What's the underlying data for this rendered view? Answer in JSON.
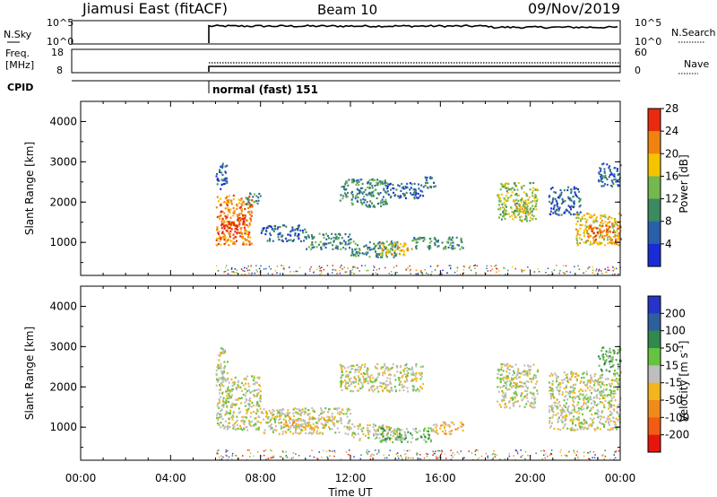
{
  "header": {
    "site": "Jiamusi East (fitACF)",
    "beam": "Beam 10",
    "date": "09/Nov/2019"
  },
  "strip_panels": {
    "nsky_label": "N.Sky",
    "nsearch_label": "N.Search",
    "log_ticks": [
      "10^5",
      "10^0"
    ],
    "freq_label": "Freq.",
    "freq_unit": "[MHz]",
    "freq_ticks": [
      "18",
      "8"
    ],
    "nave_label": "Nave",
    "nave_ticks": [
      "60",
      "0"
    ],
    "cpid_label": "CPID",
    "cpid_text": "normal (fast) 151"
  },
  "time_axis": {
    "ticks": [
      "00:00",
      "04:00",
      "08:00",
      "12:00",
      "16:00",
      "20:00",
      "00:00"
    ],
    "label": "Time UT"
  },
  "power_panel": {
    "ylabel": "Slant Range [km]",
    "yticks": [
      "1000",
      "2000",
      "3000",
      "4000"
    ],
    "colorbar_label": "Power [dB]",
    "colorbar_ticks": [
      "4",
      "8",
      "12",
      "16",
      "20",
      "24",
      "28"
    ],
    "colors": [
      "#1a2bd6",
      "#2a5faa",
      "#3d8a5f",
      "#74b84e",
      "#f5c400",
      "#f0830f",
      "#ea2a10"
    ]
  },
  "velocity_panel": {
    "ylabel": "Slant Range [km]",
    "yticks": [
      "1000",
      "2000",
      "3000",
      "4000"
    ],
    "colorbar_label": "Velocity [m s^-1]",
    "colorbar_ticks": [
      "200",
      "100",
      "50",
      "15",
      "-15",
      "-50",
      "-100",
      "-200"
    ],
    "colors": [
      "#2535c8",
      "#2d5f9e",
      "#2f8a4c",
      "#66c340",
      "#bebebe",
      "#f3b51d",
      "#f08a1b",
      "#f25b13",
      "#e8150c"
    ]
  },
  "chart_data": {
    "type": "heatmap",
    "x_range_hours": [
      0,
      24
    ],
    "y_range_km": [
      180,
      4500
    ],
    "radar_on_time_h": 6.0,
    "nsky_log_level": 4.3,
    "nsky_after_18_3": 4.0,
    "freq_level_mhz": 10.5,
    "nave_level": 25,
    "power_regions": [
      {
        "t0": 6.0,
        "t1": 7.6,
        "r0": 950,
        "r1": 2200,
        "level": 5
      },
      {
        "t0": 6.2,
        "t1": 7.3,
        "r0": 1150,
        "r1": 1650,
        "level": 6
      },
      {
        "t0": 6.0,
        "t1": 6.5,
        "r0": 2300,
        "r1": 3000,
        "level": 1
      },
      {
        "t0": 7.3,
        "t1": 8.0,
        "r0": 1950,
        "r1": 2250,
        "level": 2
      },
      {
        "t0": 8.0,
        "t1": 10.0,
        "r0": 1050,
        "r1": 1450,
        "level": 1
      },
      {
        "t0": 10.0,
        "t1": 12.0,
        "r0": 850,
        "r1": 1250,
        "level": 2
      },
      {
        "t0": 12.0,
        "t1": 14.2,
        "r0": 650,
        "r1": 1050,
        "level": 2
      },
      {
        "t0": 13.3,
        "t1": 14.7,
        "r0": 700,
        "r1": 1000,
        "level": 4
      },
      {
        "t0": 14.7,
        "t1": 17.0,
        "r0": 850,
        "r1": 1150,
        "level": 2
      },
      {
        "t0": 11.5,
        "t1": 13.6,
        "r0": 1900,
        "r1": 2600,
        "level": 2
      },
      {
        "t0": 13.6,
        "t1": 15.2,
        "r0": 2100,
        "r1": 2500,
        "level": 1
      },
      {
        "t0": 15.2,
        "t1": 15.8,
        "r0": 2350,
        "r1": 2650,
        "level": 1
      },
      {
        "t0": 18.5,
        "t1": 20.3,
        "r0": 1550,
        "r1": 2500,
        "level": 3
      },
      {
        "t0": 19.2,
        "t1": 20.0,
        "r0": 1700,
        "r1": 2100,
        "level": 4
      },
      {
        "t0": 20.8,
        "t1": 22.2,
        "r0": 1700,
        "r1": 2400,
        "level": 1
      },
      {
        "t0": 22.0,
        "t1": 24.0,
        "r0": 950,
        "r1": 1750,
        "level": 4
      },
      {
        "t0": 22.5,
        "t1": 24.0,
        "r0": 1050,
        "r1": 1450,
        "level": 5
      },
      {
        "t0": 23.0,
        "t1": 24.0,
        "r0": 2400,
        "r1": 3000,
        "level": 1
      }
    ],
    "velocity_regions": [
      {
        "t0": 6.0,
        "t1": 8.0,
        "r0": 950,
        "r1": 2300,
        "level": 4
      },
      {
        "t0": 6.0,
        "t1": 6.5,
        "r0": 2300,
        "r1": 3000,
        "level": 4
      },
      {
        "t0": 8.0,
        "t1": 12.0,
        "r0": 850,
        "r1": 1500,
        "level": 4
      },
      {
        "t0": 9.0,
        "t1": 11.0,
        "r0": 1000,
        "r1": 1250,
        "level": 5
      },
      {
        "t0": 12.0,
        "t1": 14.2,
        "r0": 700,
        "r1": 1100,
        "level": 4
      },
      {
        "t0": 13.3,
        "t1": 15.6,
        "r0": 650,
        "r1": 1000,
        "level": 3
      },
      {
        "t0": 15.6,
        "t1": 17.0,
        "r0": 850,
        "r1": 1150,
        "level": 5
      },
      {
        "t0": 11.5,
        "t1": 15.2,
        "r0": 1900,
        "r1": 2600,
        "level": 4
      },
      {
        "t0": 18.5,
        "t1": 20.3,
        "r0": 1500,
        "r1": 2600,
        "level": 4
      },
      {
        "t0": 20.8,
        "t1": 24.0,
        "r0": 950,
        "r1": 2400,
        "level": 4
      },
      {
        "t0": 23.0,
        "t1": 24.0,
        "r0": 2400,
        "r1": 3000,
        "level": 3
      }
    ]
  }
}
